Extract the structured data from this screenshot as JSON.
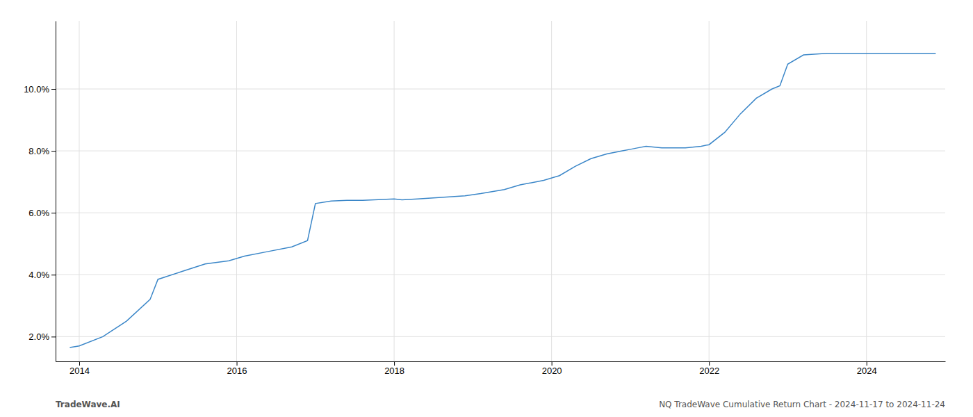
{
  "chart_data": {
    "type": "line",
    "x": [
      2013.88,
      2014.0,
      2014.3,
      2014.6,
      2014.9,
      2015.0,
      2015.3,
      2015.6,
      2015.9,
      2016.1,
      2016.4,
      2016.7,
      2016.9,
      2017.0,
      2017.2,
      2017.4,
      2017.6,
      2017.75,
      2017.85,
      2018.0,
      2018.1,
      2018.3,
      2018.6,
      2018.9,
      2019.1,
      2019.4,
      2019.6,
      2019.9,
      2020.1,
      2020.3,
      2020.5,
      2020.7,
      2020.9,
      2021.0,
      2021.1,
      2021.2,
      2021.4,
      2021.7,
      2021.9,
      2022.0,
      2022.2,
      2022.4,
      2022.6,
      2022.8,
      2022.9,
      2023.0,
      2023.2,
      2023.5,
      2023.8,
      2024.0,
      2024.5,
      2024.88
    ],
    "values": [
      1.65,
      1.7,
      2.0,
      2.5,
      3.2,
      3.85,
      4.1,
      4.35,
      4.45,
      4.6,
      4.75,
      4.9,
      5.1,
      6.3,
      6.38,
      6.4,
      6.4,
      6.42,
      6.43,
      6.45,
      6.42,
      6.45,
      6.5,
      6.55,
      6.62,
      6.75,
      6.9,
      7.05,
      7.2,
      7.5,
      7.75,
      7.9,
      8.0,
      8.05,
      8.1,
      8.15,
      8.1,
      8.1,
      8.15,
      8.2,
      8.6,
      9.2,
      9.7,
      10.0,
      10.1,
      10.8,
      11.1,
      11.15,
      11.15,
      11.15,
      11.15,
      11.15
    ],
    "color": "#3a86c8",
    "xlim": [
      2013.7,
      2025.0
    ],
    "ylim": [
      1.2,
      12.2
    ],
    "xticks": [
      2014,
      2016,
      2018,
      2020,
      2022,
      2024
    ],
    "yticks": [
      {
        "value": 2.0,
        "label": "2.0%"
      },
      {
        "value": 4.0,
        "label": "4.0%"
      },
      {
        "value": 6.0,
        "label": "6.0%"
      },
      {
        "value": 8.0,
        "label": "8.0%"
      },
      {
        "value": 10.0,
        "label": "10.0%"
      }
    ],
    "grid": true,
    "annotations": [
      "TradeWave.AI",
      "NQ TradeWave Cumulative Return Chart - 2024-11-17 to 2024-11-24"
    ]
  }
}
